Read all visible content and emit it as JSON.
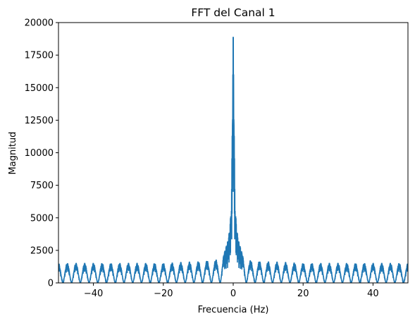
{
  "chart_data": {
    "type": "line",
    "title": "FFT del Canal 1",
    "xlabel": "Frecuencia (Hz)",
    "ylabel": "Magnitud",
    "xlim": [
      -50,
      50
    ],
    "ylim": [
      0,
      20000
    ],
    "x_ticks": [
      "−40",
      "−20",
      "0",
      "20",
      "40"
    ],
    "x_tick_values": [
      -40,
      -20,
      0,
      20,
      40
    ],
    "y_ticks": [
      "0",
      "2500",
      "5000",
      "7500",
      "10000",
      "12500",
      "15000",
      "17500",
      "20000"
    ],
    "y_tick_values": [
      0,
      2500,
      5000,
      7500,
      10000,
      12500,
      15000,
      17500,
      20000
    ],
    "grid": false,
    "legend": "none",
    "color": "#1f77b4",
    "series": [
      {
        "peak_spacing_hz": 2.5,
        "sidelobe_level": 1550,
        "envelope_near_center": [
          [
            -10,
            1700
          ],
          [
            -7.5,
            1750
          ],
          [
            -5,
            1800
          ],
          [
            -2.5,
            2400
          ],
          [
            -1.5,
            3300
          ],
          [
            -1,
            4200
          ],
          [
            -0.5,
            6200
          ],
          [
            -0.2,
            15000
          ],
          [
            0,
            20000
          ],
          [
            0.2,
            15000
          ],
          [
            0.5,
            6200
          ],
          [
            1,
            4200
          ],
          [
            1.5,
            3300
          ],
          [
            2.5,
            2350
          ],
          [
            5,
            1750
          ],
          [
            7.5,
            1700
          ],
          [
            10,
            1650
          ]
        ]
      }
    ]
  }
}
